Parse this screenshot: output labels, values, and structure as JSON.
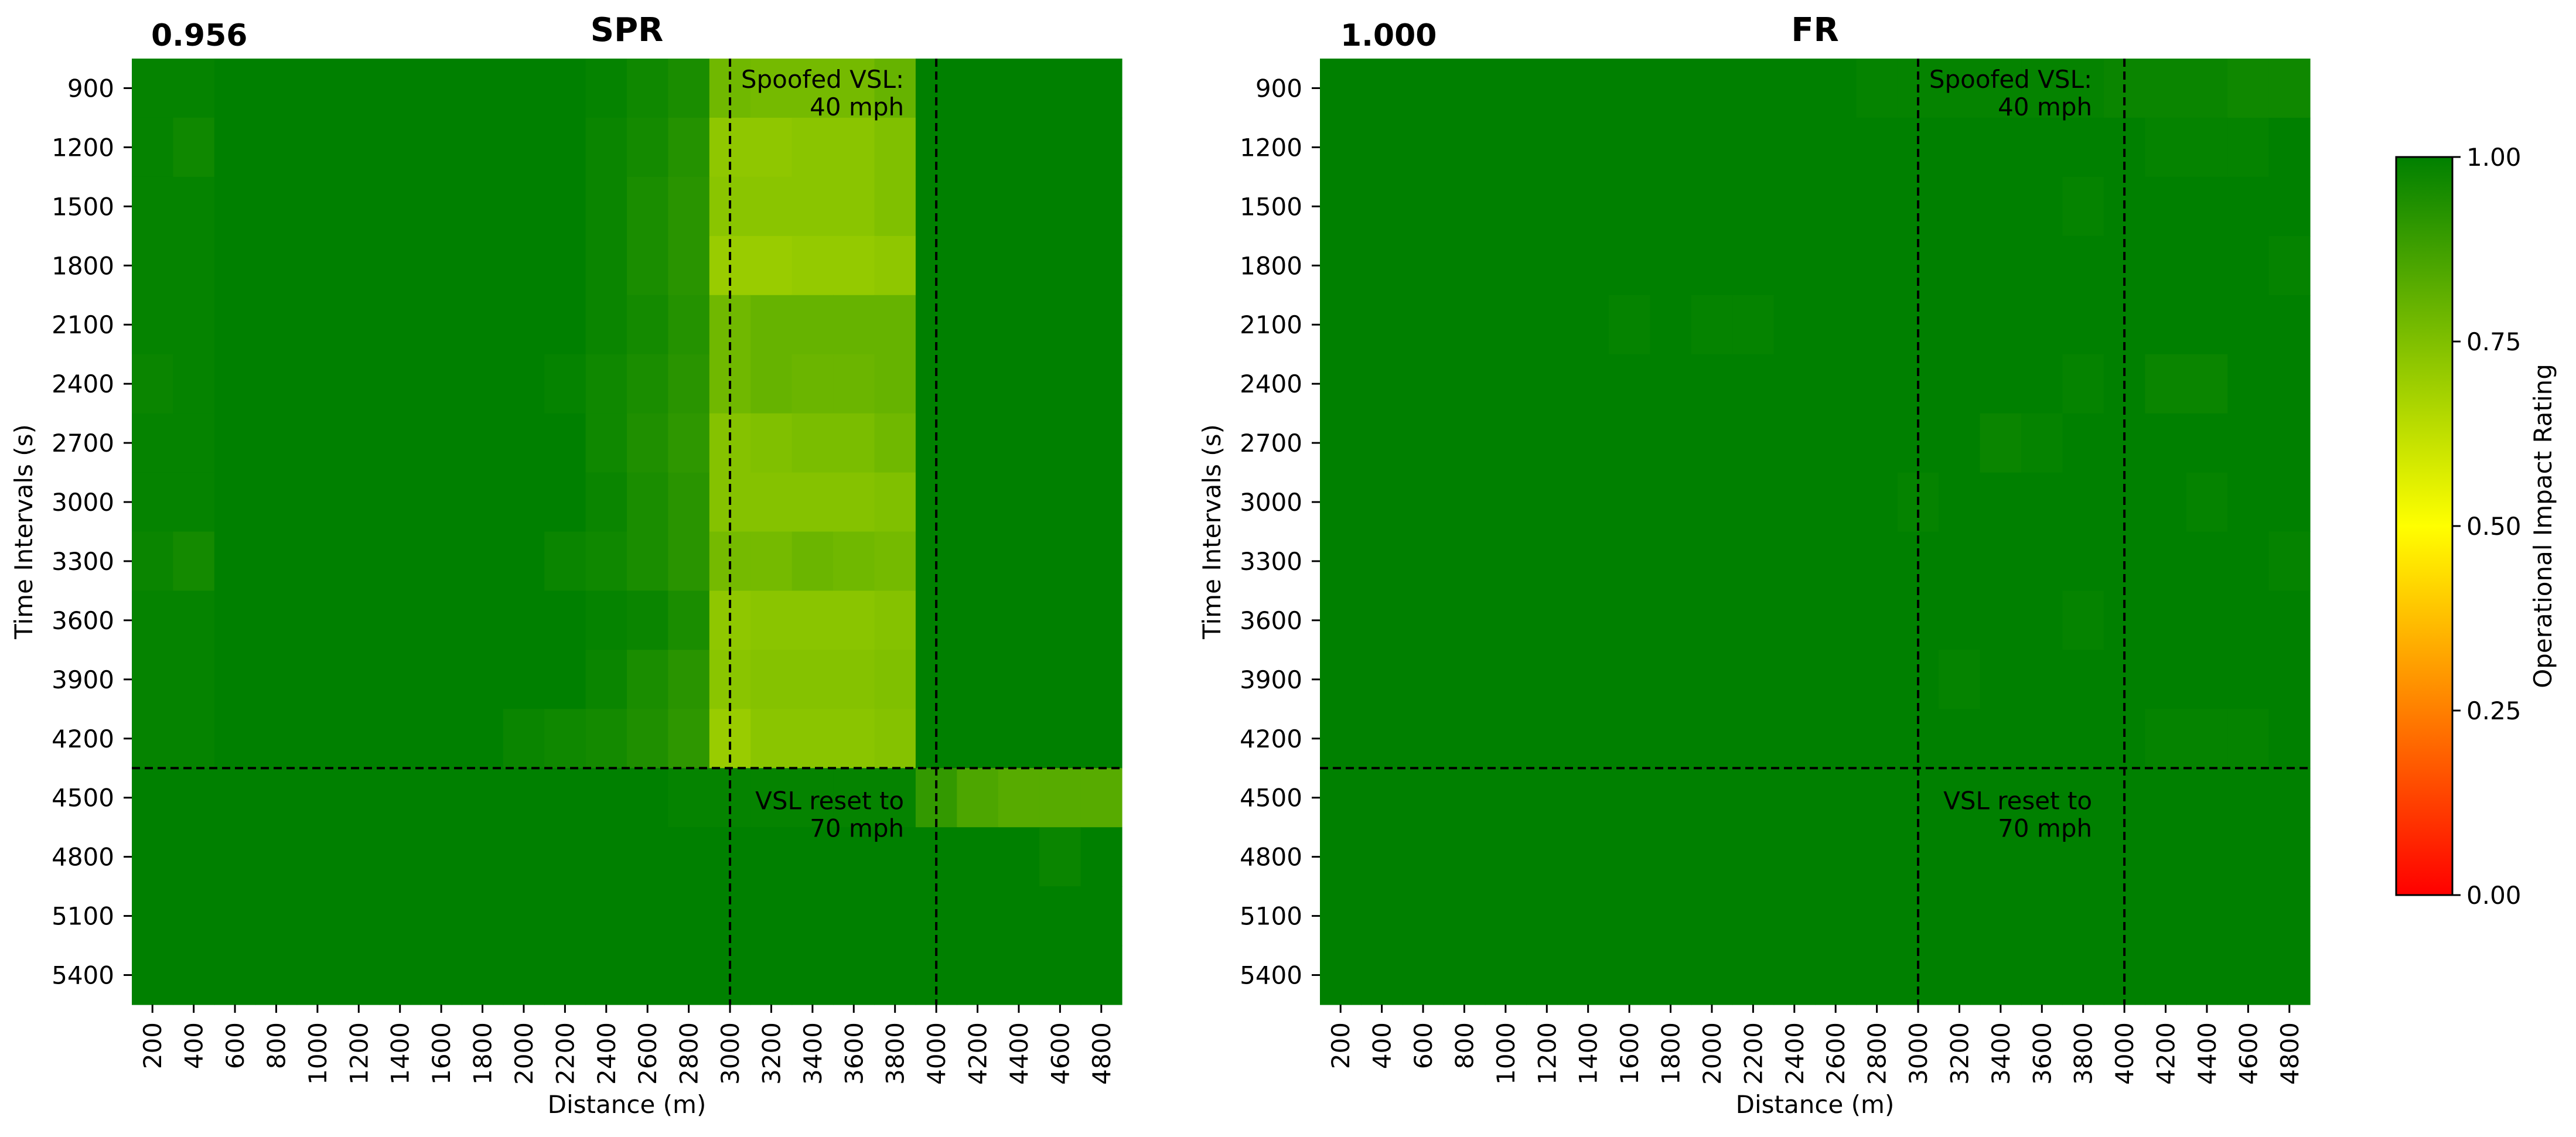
{
  "chart_data": [
    {
      "type": "heatmap",
      "title": "SPR",
      "score": "0.956",
      "xlabel": "Distance (m)",
      "ylabel": "Time Intervals (s)",
      "x": [
        200,
        400,
        600,
        800,
        1000,
        1200,
        1400,
        1600,
        1800,
        2000,
        2200,
        2400,
        2600,
        2800,
        3000,
        3200,
        3400,
        3600,
        3800,
        4000,
        4200,
        4400,
        4600,
        4800
      ],
      "y": [
        900,
        1200,
        1500,
        1800,
        2100,
        2400,
        2700,
        3000,
        3300,
        3600,
        3900,
        4200,
        4500,
        4800,
        5100,
        5400
      ],
      "vlines": [
        3000,
        4000
      ],
      "hline_after": 4200,
      "annotations": [
        {
          "text_lines": [
            "Spoofed VSL:",
            "40 mph"
          ]
        },
        {
          "text_lines": [
            "VSL reset to",
            "70 mph"
          ]
        }
      ],
      "values": [
        [
          0.99,
          0.99,
          1.0,
          1.0,
          1.0,
          1.0,
          1.0,
          1.0,
          1.0,
          1.0,
          1.0,
          0.99,
          0.97,
          0.95,
          0.78,
          0.77,
          0.77,
          0.77,
          0.8,
          1.0,
          1.0,
          1.0,
          1.0,
          1.0
        ],
        [
          0.99,
          0.97,
          1.0,
          1.0,
          1.0,
          1.0,
          1.0,
          1.0,
          1.0,
          1.0,
          1.0,
          0.98,
          0.96,
          0.93,
          0.72,
          0.72,
          0.73,
          0.73,
          0.75,
          1.0,
          1.0,
          1.0,
          1.0,
          1.0
        ],
        [
          0.99,
          0.99,
          1.0,
          1.0,
          1.0,
          1.0,
          1.0,
          1.0,
          1.0,
          1.0,
          1.0,
          0.98,
          0.95,
          0.92,
          0.73,
          0.73,
          0.73,
          0.73,
          0.75,
          1.0,
          1.0,
          1.0,
          1.0,
          1.0
        ],
        [
          0.99,
          0.99,
          1.0,
          1.0,
          1.0,
          1.0,
          1.0,
          1.0,
          1.0,
          1.0,
          1.0,
          0.98,
          0.95,
          0.92,
          0.7,
          0.7,
          0.71,
          0.71,
          0.72,
          1.0,
          1.0,
          1.0,
          1.0,
          1.0
        ],
        [
          0.99,
          0.99,
          1.0,
          1.0,
          1.0,
          1.0,
          1.0,
          1.0,
          1.0,
          1.0,
          1.0,
          0.98,
          0.96,
          0.93,
          0.78,
          0.8,
          0.8,
          0.8,
          0.8,
          1.0,
          1.0,
          1.0,
          1.0,
          1.0
        ],
        [
          0.98,
          0.99,
          1.0,
          1.0,
          1.0,
          1.0,
          1.0,
          1.0,
          1.0,
          1.0,
          0.99,
          0.97,
          0.95,
          0.92,
          0.78,
          0.8,
          0.79,
          0.79,
          0.8,
          1.0,
          1.0,
          1.0,
          1.0,
          1.0
        ],
        [
          0.99,
          0.99,
          1.0,
          1.0,
          1.0,
          1.0,
          1.0,
          1.0,
          1.0,
          1.0,
          1.0,
          0.97,
          0.94,
          0.91,
          0.74,
          0.75,
          0.76,
          0.76,
          0.78,
          1.0,
          1.0,
          1.0,
          1.0,
          1.0
        ],
        [
          0.99,
          0.99,
          1.0,
          1.0,
          1.0,
          1.0,
          1.0,
          1.0,
          1.0,
          1.0,
          1.0,
          0.98,
          0.95,
          0.92,
          0.74,
          0.74,
          0.74,
          0.74,
          0.75,
          1.0,
          1.0,
          1.0,
          1.0,
          1.0
        ],
        [
          0.98,
          0.96,
          1.0,
          1.0,
          1.0,
          1.0,
          1.0,
          1.0,
          1.0,
          1.0,
          0.98,
          0.97,
          0.95,
          0.92,
          0.77,
          0.77,
          0.79,
          0.78,
          0.77,
          1.0,
          1.0,
          1.0,
          1.0,
          1.0
        ],
        [
          0.99,
          0.99,
          1.0,
          1.0,
          1.0,
          1.0,
          1.0,
          1.0,
          1.0,
          1.0,
          1.0,
          0.99,
          0.98,
          0.95,
          0.72,
          0.73,
          0.73,
          0.73,
          0.74,
          1.0,
          1.0,
          1.0,
          1.0,
          1.0
        ],
        [
          0.99,
          0.99,
          1.0,
          1.0,
          1.0,
          1.0,
          1.0,
          1.0,
          1.0,
          1.0,
          1.0,
          0.98,
          0.95,
          0.92,
          0.73,
          0.74,
          0.74,
          0.74,
          0.75,
          1.0,
          1.0,
          1.0,
          1.0,
          1.0
        ],
        [
          0.99,
          0.99,
          1.0,
          1.0,
          1.0,
          1.0,
          1.0,
          1.0,
          1.0,
          0.98,
          0.97,
          0.96,
          0.94,
          0.91,
          0.7,
          0.73,
          0.73,
          0.73,
          0.74,
          1.0,
          1.0,
          1.0,
          1.0,
          1.0
        ],
        [
          1.0,
          1.0,
          1.0,
          1.0,
          1.0,
          1.0,
          1.0,
          1.0,
          1.0,
          1.0,
          1.0,
          1.0,
          1.0,
          0.99,
          0.99,
          0.99,
          0.99,
          0.99,
          0.99,
          0.9,
          0.85,
          0.83,
          0.83,
          0.83
        ],
        [
          1.0,
          1.0,
          1.0,
          1.0,
          1.0,
          1.0,
          1.0,
          1.0,
          1.0,
          1.0,
          1.0,
          1.0,
          1.0,
          1.0,
          1.0,
          1.0,
          1.0,
          1.0,
          1.0,
          1.0,
          1.0,
          1.0,
          0.98,
          1.0
        ],
        [
          1.0,
          1.0,
          1.0,
          1.0,
          1.0,
          1.0,
          1.0,
          1.0,
          1.0,
          1.0,
          1.0,
          1.0,
          1.0,
          1.0,
          1.0,
          1.0,
          1.0,
          1.0,
          1.0,
          1.0,
          1.0,
          1.0,
          1.0,
          1.0
        ],
        [
          1.0,
          1.0,
          1.0,
          1.0,
          1.0,
          1.0,
          1.0,
          1.0,
          1.0,
          1.0,
          1.0,
          1.0,
          1.0,
          1.0,
          1.0,
          1.0,
          1.0,
          1.0,
          1.0,
          1.0,
          1.0,
          1.0,
          1.0,
          1.0
        ]
      ]
    },
    {
      "type": "heatmap",
      "title": "FR",
      "score": "1.000",
      "xlabel": "Distance (m)",
      "ylabel": "Time Intervals (s)",
      "x": [
        200,
        400,
        600,
        800,
        1000,
        1200,
        1400,
        1600,
        1800,
        2000,
        2200,
        2400,
        2600,
        2800,
        3000,
        3200,
        3400,
        3600,
        3800,
        4000,
        4200,
        4400,
        4600,
        4800
      ],
      "y": [
        900,
        1200,
        1500,
        1800,
        2100,
        2400,
        2700,
        3000,
        3300,
        3600,
        3900,
        4200,
        4500,
        4800,
        5100,
        5400
      ],
      "vlines": [
        3000,
        4000
      ],
      "hline_after": 4200,
      "annotations": [
        {
          "text_lines": [
            "Spoofed VSL:",
            "40 mph"
          ]
        },
        {
          "text_lines": [
            "VSL reset to",
            "70 mph"
          ]
        }
      ],
      "values": [
        [
          1.0,
          1.0,
          1.0,
          1.0,
          1.0,
          1.0,
          1.0,
          1.0,
          1.0,
          1.0,
          1.0,
          1.0,
          1.0,
          0.99,
          0.99,
          0.99,
          0.99,
          0.99,
          0.99,
          0.98,
          0.98,
          0.98,
          0.97,
          0.97
        ],
        [
          1.0,
          1.0,
          1.0,
          1.0,
          1.0,
          1.0,
          1.0,
          1.0,
          1.0,
          1.0,
          1.0,
          1.0,
          1.0,
          1.0,
          1.0,
          1.0,
          1.0,
          1.0,
          1.0,
          1.0,
          0.99,
          0.99,
          0.99,
          1.0
        ],
        [
          1.0,
          1.0,
          1.0,
          1.0,
          1.0,
          1.0,
          1.0,
          1.0,
          1.0,
          1.0,
          1.0,
          1.0,
          1.0,
          1.0,
          1.0,
          1.0,
          1.0,
          1.0,
          0.99,
          1.0,
          1.0,
          1.0,
          1.0,
          1.0
        ],
        [
          1.0,
          1.0,
          1.0,
          1.0,
          1.0,
          1.0,
          1.0,
          1.0,
          1.0,
          1.0,
          1.0,
          1.0,
          1.0,
          1.0,
          1.0,
          1.0,
          1.0,
          1.0,
          1.0,
          1.0,
          1.0,
          1.0,
          1.0,
          0.99
        ],
        [
          1.0,
          1.0,
          1.0,
          1.0,
          1.0,
          1.0,
          1.0,
          0.99,
          1.0,
          0.99,
          0.99,
          1.0,
          1.0,
          1.0,
          1.0,
          1.0,
          1.0,
          1.0,
          1.0,
          1.0,
          1.0,
          1.0,
          1.0,
          1.0
        ],
        [
          1.0,
          1.0,
          1.0,
          1.0,
          1.0,
          1.0,
          1.0,
          1.0,
          1.0,
          1.0,
          1.0,
          1.0,
          1.0,
          1.0,
          1.0,
          1.0,
          1.0,
          1.0,
          0.99,
          1.0,
          0.98,
          0.98,
          1.0,
          1.0
        ],
        [
          1.0,
          1.0,
          1.0,
          1.0,
          1.0,
          1.0,
          1.0,
          1.0,
          1.0,
          1.0,
          1.0,
          1.0,
          1.0,
          1.0,
          1.0,
          1.0,
          0.98,
          0.99,
          1.0,
          1.0,
          1.0,
          1.0,
          1.0,
          1.0
        ],
        [
          1.0,
          1.0,
          1.0,
          1.0,
          1.0,
          1.0,
          1.0,
          1.0,
          1.0,
          1.0,
          1.0,
          1.0,
          1.0,
          1.0,
          0.99,
          1.0,
          1.0,
          1.0,
          1.0,
          1.0,
          1.0,
          0.99,
          1.0,
          1.0
        ],
        [
          1.0,
          1.0,
          1.0,
          1.0,
          1.0,
          1.0,
          1.0,
          1.0,
          1.0,
          1.0,
          1.0,
          1.0,
          1.0,
          1.0,
          1.0,
          1.0,
          1.0,
          1.0,
          1.0,
          1.0,
          1.0,
          1.0,
          1.0,
          0.99
        ],
        [
          1.0,
          1.0,
          1.0,
          1.0,
          1.0,
          1.0,
          1.0,
          1.0,
          1.0,
          1.0,
          1.0,
          1.0,
          1.0,
          1.0,
          1.0,
          1.0,
          1.0,
          1.0,
          0.99,
          1.0,
          1.0,
          1.0,
          1.0,
          1.0
        ],
        [
          1.0,
          1.0,
          1.0,
          1.0,
          1.0,
          1.0,
          1.0,
          1.0,
          1.0,
          1.0,
          1.0,
          1.0,
          1.0,
          1.0,
          1.0,
          0.99,
          1.0,
          1.0,
          1.0,
          1.0,
          1.0,
          1.0,
          1.0,
          1.0
        ],
        [
          1.0,
          1.0,
          1.0,
          1.0,
          1.0,
          1.0,
          1.0,
          1.0,
          1.0,
          1.0,
          1.0,
          1.0,
          1.0,
          1.0,
          1.0,
          1.0,
          1.0,
          1.0,
          1.0,
          1.0,
          0.99,
          0.99,
          0.99,
          1.0
        ],
        [
          1.0,
          1.0,
          1.0,
          1.0,
          1.0,
          1.0,
          1.0,
          1.0,
          1.0,
          1.0,
          1.0,
          1.0,
          1.0,
          1.0,
          1.0,
          1.0,
          1.0,
          1.0,
          1.0,
          1.0,
          1.0,
          1.0,
          1.0,
          1.0
        ],
        [
          1.0,
          1.0,
          1.0,
          1.0,
          1.0,
          1.0,
          1.0,
          1.0,
          1.0,
          1.0,
          1.0,
          1.0,
          1.0,
          1.0,
          1.0,
          1.0,
          1.0,
          1.0,
          1.0,
          1.0,
          1.0,
          1.0,
          1.0,
          1.0
        ],
        [
          1.0,
          1.0,
          1.0,
          1.0,
          1.0,
          1.0,
          1.0,
          1.0,
          1.0,
          1.0,
          1.0,
          1.0,
          1.0,
          1.0,
          1.0,
          1.0,
          1.0,
          1.0,
          1.0,
          1.0,
          1.0,
          1.0,
          1.0,
          1.0
        ],
        [
          1.0,
          1.0,
          1.0,
          1.0,
          1.0,
          1.0,
          1.0,
          1.0,
          1.0,
          1.0,
          1.0,
          1.0,
          1.0,
          1.0,
          1.0,
          1.0,
          1.0,
          1.0,
          1.0,
          1.0,
          1.0,
          1.0,
          1.0,
          1.0
        ]
      ]
    }
  ],
  "colorbar": {
    "label": "Operational Impact Rating",
    "ticks": [
      "0.00",
      "0.25",
      "0.50",
      "0.75",
      "1.00"
    ],
    "range": [
      0,
      1
    ],
    "colors": [
      "#ff0000",
      "#ffff00",
      "#008000"
    ]
  },
  "colors": {
    "line": "#000000"
  }
}
